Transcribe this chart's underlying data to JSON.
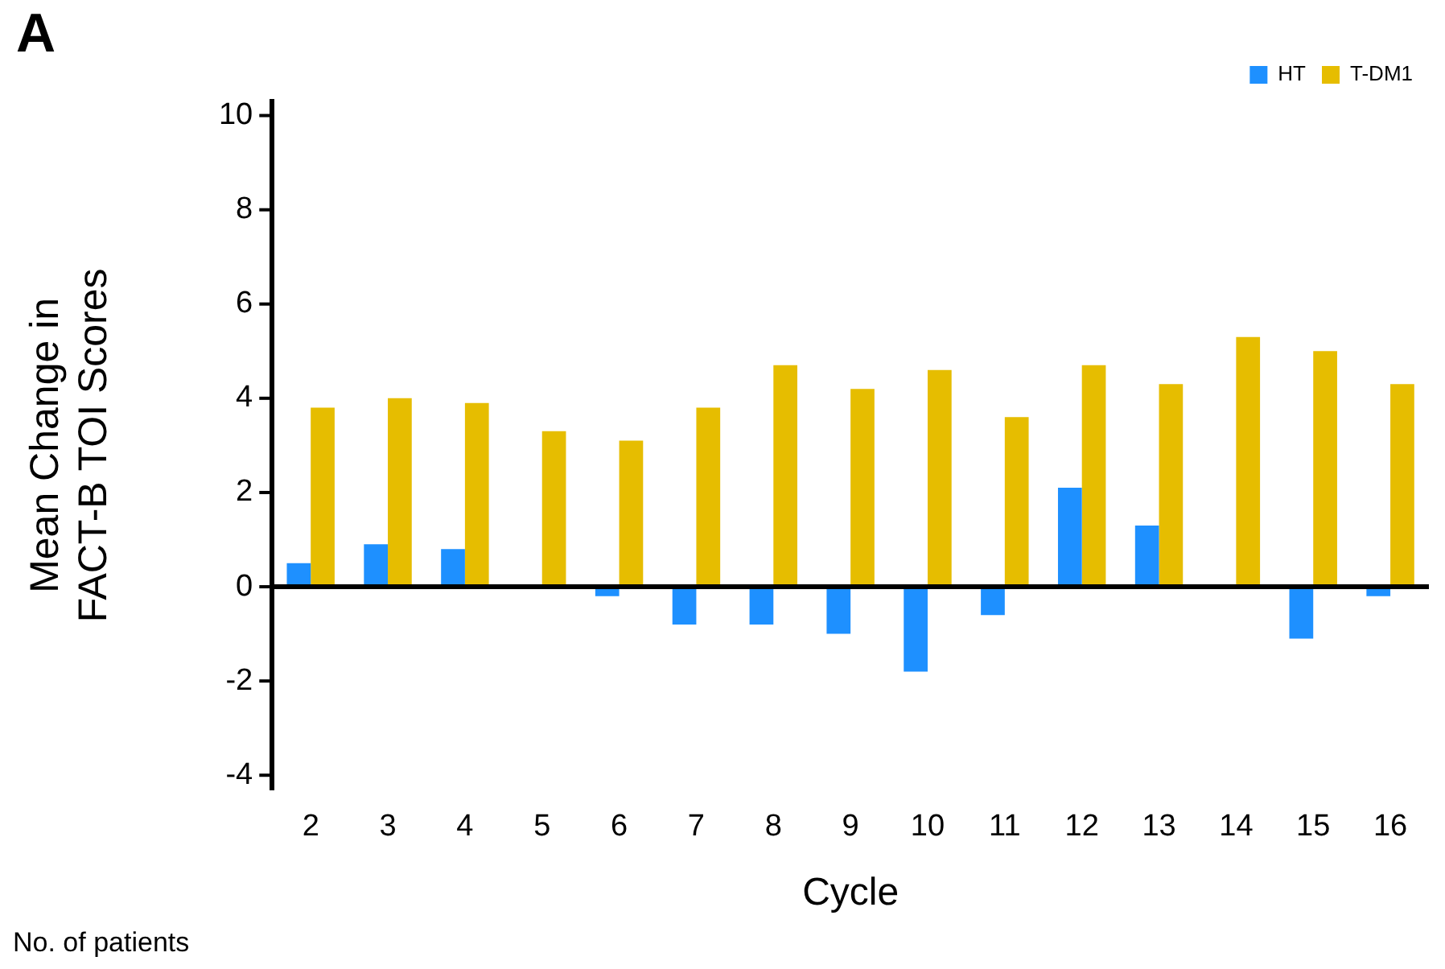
{
  "chart_data": {
    "type": "bar",
    "title": "A",
    "xlabel": "Cycle",
    "ylabel": "Mean Change in\nFACT-B TOI Scores",
    "categories": [
      "2",
      "3",
      "4",
      "5",
      "6",
      "7",
      "8",
      "9",
      "10",
      "11",
      "12",
      "13",
      "14",
      "15",
      "16"
    ],
    "series": [
      {
        "name": "HT",
        "color": "#1e90ff",
        "values": [
          0.5,
          0.9,
          0.8,
          null,
          -0.2,
          -0.8,
          -0.8,
          -1.0,
          -1.8,
          -0.6,
          2.1,
          1.3,
          null,
          -1.1,
          -0.2
        ]
      },
      {
        "name": "T-DM1",
        "color": "#e6bd00",
        "values": [
          3.8,
          4.0,
          3.9,
          3.3,
          3.1,
          3.8,
          4.7,
          4.2,
          4.6,
          3.6,
          4.7,
          4.3,
          5.3,
          5.0,
          4.3
        ]
      }
    ],
    "ylim": [
      -4.3,
      10.3
    ],
    "yticks": [
      -4,
      -2,
      0,
      2,
      4,
      6,
      8,
      10
    ],
    "grid": false,
    "legend": "top right",
    "ref_lines": [
      {
        "axis": "y",
        "value": 0,
        "color": "#000000"
      }
    ],
    "annotations": [
      "No. of patients"
    ]
  }
}
